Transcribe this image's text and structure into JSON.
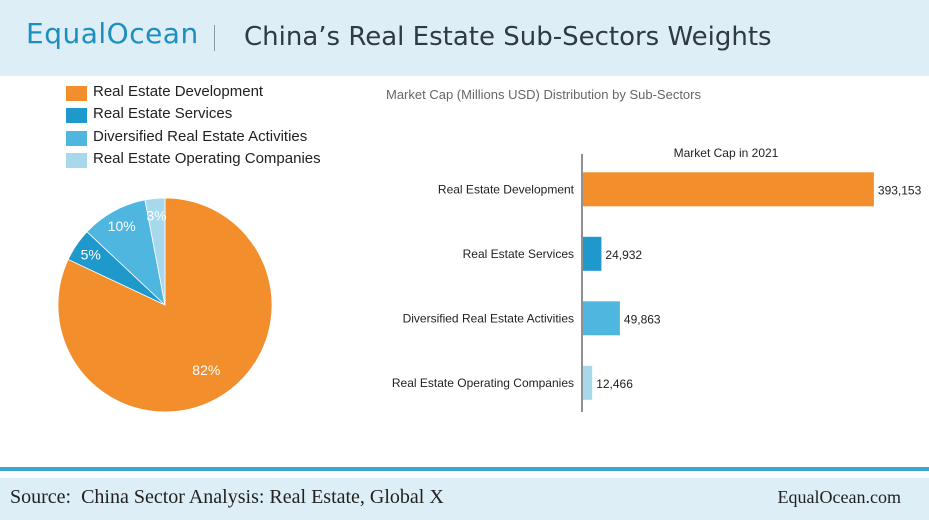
{
  "header": {
    "logo_text": "EqualOcean",
    "title": "China’s Real Estate Sub-Sectors Weights"
  },
  "chart_data": [
    {
      "type": "pie",
      "title": "",
      "labels": [
        "Real Estate Development",
        "Real Estate Services",
        "Diversified Real Estate Activities",
        "Real Estate Operating Companies"
      ],
      "values": [
        82,
        5,
        10,
        3
      ],
      "value_labels": [
        "82%",
        "5%",
        "10%",
        "3%"
      ],
      "colors": [
        "#f28e2b",
        "#1f98cc",
        "#4fb6df",
        "#a8d8ec"
      ],
      "legend_position": "top-left"
    },
    {
      "type": "bar",
      "orientation": "horizontal",
      "title": "Market Cap (Millions USD) Distribution by Sub-Sectors",
      "series_title": "Market Cap in 2021",
      "categories": [
        "Real Estate Development",
        "Real Estate Services",
        "Diversified Real Estate Activities",
        "Real Estate Operating Companies"
      ],
      "values": [
        393153,
        24932,
        49863,
        12466
      ],
      "value_labels": [
        "393,153",
        "24,932",
        "49,863",
        "12,466"
      ],
      "colors": [
        "#f28e2b",
        "#1f98cc",
        "#4fb6df",
        "#a8d8ec"
      ],
      "xlim": [
        0,
        400000
      ],
      "grid": false
    }
  ],
  "footer": {
    "source": "Source:  China Sector Analysis: Real Estate, Global X",
    "site": "EqualOcean.com"
  }
}
